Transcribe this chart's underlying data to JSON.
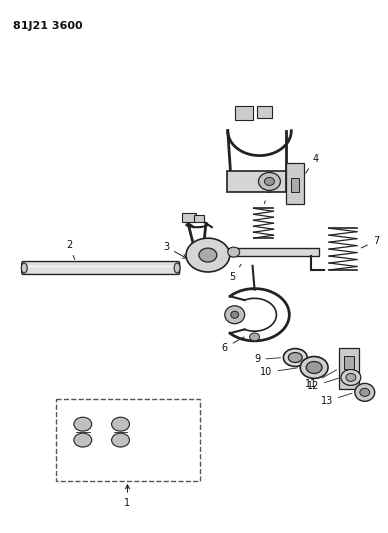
{
  "title": "81J21 3600",
  "bg": "#ffffff",
  "lc": "#222222",
  "tc": "#111111",
  "fig_w": 3.88,
  "fig_h": 5.33,
  "dpi": 100
}
